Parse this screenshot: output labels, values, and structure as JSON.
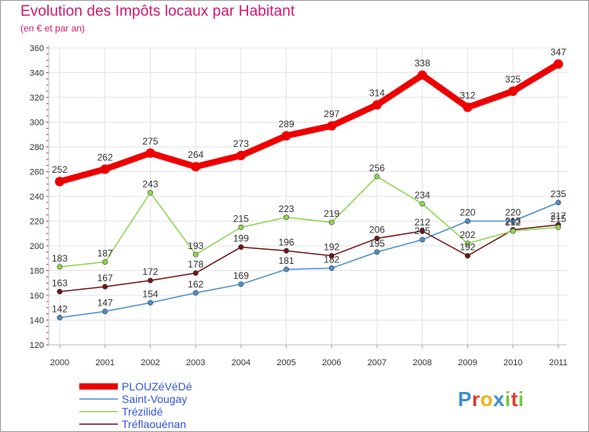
{
  "chart_data": {
    "type": "line",
    "title": "Evolution des Impôts locaux par Habitant",
    "subtitle": "(en € et par an)",
    "xlabel": "",
    "ylabel": "",
    "ylim": [
      120,
      360
    ],
    "yticks": [
      120,
      140,
      160,
      180,
      200,
      220,
      240,
      260,
      280,
      300,
      320,
      340,
      360
    ],
    "categories": [
      "2000",
      "2001",
      "2002",
      "2003",
      "2004",
      "2005",
      "2006",
      "2007",
      "2008",
      "2009",
      "2010",
      "2011"
    ],
    "series": [
      {
        "name": "PLOUZéVéDé",
        "color": "#ee0000",
        "values": [
          252,
          262,
          275,
          264,
          273,
          289,
          297,
          314,
          338,
          312,
          325,
          347
        ]
      },
      {
        "name": "Saint-Vougay",
        "color": "#4c8ec9",
        "values": [
          142,
          147,
          154,
          162,
          169,
          181,
          182,
          195,
          205,
          220,
          220,
          235
        ]
      },
      {
        "name": "Trézilidé",
        "color": "#8ed44f",
        "values": [
          183,
          187,
          243,
          193,
          215,
          223,
          219,
          256,
          234,
          202,
          212,
          215
        ]
      },
      {
        "name": "Tréflaouénan",
        "color": "#6e1616",
        "values": [
          163,
          167,
          172,
          178,
          199,
          196,
          192,
          206,
          212,
          192,
          213,
          217
        ]
      }
    ],
    "legend_position": "bottom-left"
  },
  "logo": {
    "letters": [
      "P",
      "r",
      "o",
      "x",
      "i",
      "t",
      "i"
    ],
    "colors": [
      "#3d8fd4",
      "#e8362a",
      "#f2b318",
      "#3d8fd4",
      "#7cc242",
      "#e8362a",
      "#7cc242"
    ]
  }
}
